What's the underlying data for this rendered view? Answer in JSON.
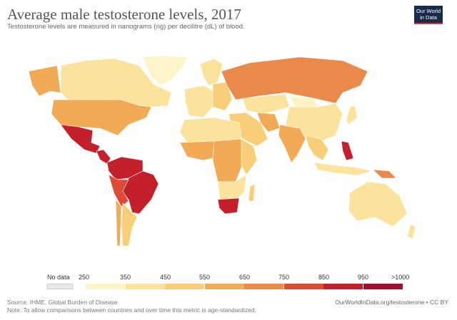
{
  "header": {
    "title": "Average male testosterone levels, 2017",
    "subtitle": "Testosterone levels are measured in nanograms (ng) per decilitre (dL) of blood.",
    "logo_text": "Our World in Data"
  },
  "legend": {
    "no_data_label": "No data",
    "no_data_color": "#e8e8e8",
    "ticks": [
      "250",
      "350",
      "450",
      "550",
      "650",
      "750",
      "850",
      "950",
      ">1000"
    ],
    "bins": [
      {
        "range": "250-350",
        "color": "#fdf5c9"
      },
      {
        "range": "350-450",
        "color": "#fbe39e"
      },
      {
        "range": "450-550",
        "color": "#f8cf78"
      },
      {
        "range": "550-650",
        "color": "#f1ab56"
      },
      {
        "range": "650-750",
        "color": "#ea8a4a"
      },
      {
        "range": "750-850",
        "color": "#dd4a36"
      },
      {
        "range": "850-950",
        "color": "#c3202c"
      },
      {
        "range": "950-1000",
        "color": "#a10e2b"
      }
    ]
  },
  "map_fills": {
    "alaska": 3,
    "canada": 1,
    "greenland": 0,
    "usa": 3,
    "mexico": 6,
    "central_america": 6,
    "colombia_venezuela": 6,
    "brazil": 6,
    "peru_bolivia": 5,
    "argentina": 2,
    "chile": 3,
    "western_europe": 1,
    "eastern_europe": 2,
    "scandinavia": 1,
    "russia": 4,
    "kazakhstan": 1,
    "middle_east": 2,
    "iran": 3,
    "north_africa": 1,
    "west_africa": 3,
    "central_africa": 3,
    "east_africa": 2,
    "southern_africa": 1,
    "south_africa": 6,
    "madagascar": 2,
    "india": 3,
    "china": 1,
    "mongolia": 0,
    "southeast_asia": 2,
    "philippines": 6,
    "indonesia": 1,
    "japan": 1,
    "australia": 1,
    "png": 4,
    "new_zealand": 1
  },
  "footer": {
    "source": "Source: IHME, Global Burden of Disease",
    "note": "Note: To allow comparisons between countries and over time this metric is age-standardized.",
    "credit": "OurWorldInData.org/testosterone • CC BY"
  }
}
